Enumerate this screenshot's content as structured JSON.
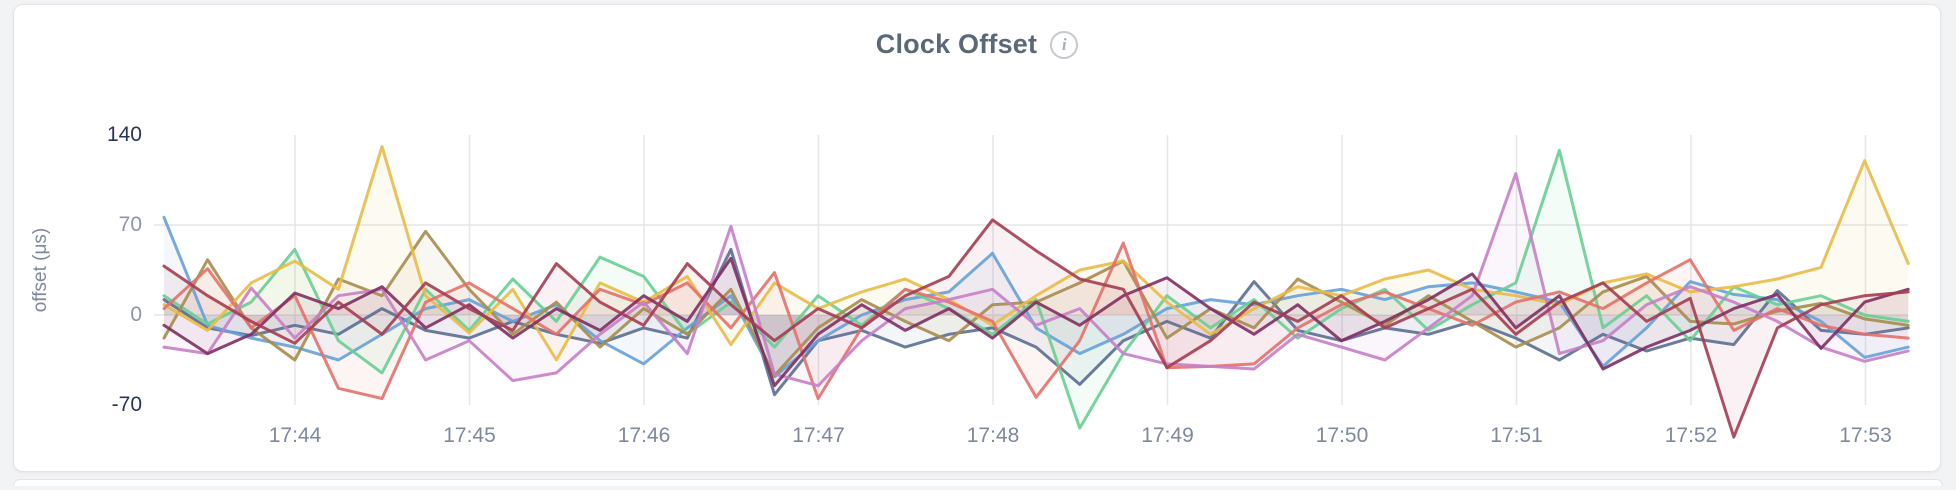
{
  "header": {
    "title": "Clock Offset",
    "info_icon": "i"
  },
  "chart_data": {
    "type": "line",
    "title": "Clock Offset",
    "xlabel": "",
    "ylabel": "offset (μs)",
    "y_ticks": [
      140,
      70,
      0,
      -70
    ],
    "y_ticks_strong": [
      140,
      -70
    ],
    "ylim": [
      -70,
      140
    ],
    "x_tick_labels": [
      "17:44",
      "17:45",
      "17:46",
      "17:47",
      "17:48",
      "17:49",
      "17:50",
      "17:51",
      "17:52",
      "17:53"
    ],
    "x_start_time": "17:43:15",
    "sample_interval_seconds": 15,
    "grid": true,
    "legend": "none",
    "line_width": 3,
    "fill_opacity": 0.07,
    "grid_color": "#e6e6e9",
    "series": [
      {
        "name": "slate",
        "color": "#5b6e91",
        "values": [
          12,
          -10,
          -16,
          -8,
          -15,
          5,
          -12,
          -18,
          -5,
          -15,
          -22,
          -10,
          -18,
          51,
          -62,
          -20,
          -12,
          -25,
          -15,
          -10,
          -25,
          -54,
          -20,
          -5,
          -18,
          26,
          -12,
          -20,
          -10,
          -15,
          -5,
          -18,
          -35,
          -15,
          -28,
          -18,
          -23,
          19,
          -12,
          -15,
          -10
        ]
      },
      {
        "name": "blue",
        "color": "#66a1d8",
        "values": [
          76,
          -8,
          -18,
          -25,
          -35,
          -15,
          5,
          12,
          -5,
          8,
          -20,
          -38,
          -10,
          15,
          -48,
          -20,
          0,
          12,
          18,
          48,
          -10,
          -30,
          -15,
          5,
          12,
          8,
          15,
          20,
          12,
          22,
          25,
          18,
          10,
          -40,
          -10,
          26,
          16,
          12,
          -5,
          -33,
          -25
        ]
      },
      {
        "name": "green",
        "color": "#69ce92",
        "values": [
          15,
          -7,
          10,
          51,
          -20,
          -45,
          20,
          -12,
          28,
          -5,
          45,
          30,
          -15,
          10,
          -25,
          15,
          -8,
          20,
          5,
          -15,
          12,
          -88,
          -30,
          15,
          -10,
          12,
          -18,
          5,
          20,
          -12,
          8,
          25,
          128,
          -10,
          15,
          -20,
          22,
          8,
          15,
          0,
          -5
        ]
      },
      {
        "name": "khaki",
        "color": "#a68c4c",
        "values": [
          -18,
          43,
          -10,
          -35,
          28,
          15,
          65,
          20,
          -15,
          10,
          -25,
          5,
          -15,
          20,
          -47,
          -10,
          12,
          -5,
          -20,
          8,
          10,
          25,
          42,
          -18,
          5,
          -10,
          28,
          10,
          -8,
          15,
          -5,
          -25,
          -10,
          18,
          30,
          -5,
          -7,
          3,
          9,
          -3,
          -8
        ]
      },
      {
        "name": "gold",
        "color": "#e9bb46",
        "values": [
          8,
          -12,
          25,
          42,
          20,
          131,
          15,
          -14,
          20,
          -35,
          25,
          10,
          30,
          -23,
          25,
          5,
          18,
          28,
          12,
          -8,
          15,
          35,
          42,
          10,
          -15,
          5,
          22,
          15,
          28,
          35,
          20,
          15,
          8,
          25,
          32,
          18,
          22,
          28,
          37,
          120,
          40
        ]
      },
      {
        "name": "salmon",
        "color": "#e4706a",
        "values": [
          5,
          36,
          -10,
          15,
          -57,
          -65,
          10,
          25,
          5,
          -15,
          20,
          8,
          25,
          -10,
          33,
          -65,
          -10,
          20,
          10,
          -5,
          -64,
          -20,
          56,
          -41,
          -40,
          -38,
          -10,
          8,
          18,
          5,
          -8,
          10,
          18,
          5,
          25,
          43,
          -12,
          5,
          -8,
          -15,
          -18
        ]
      },
      {
        "name": "orchid",
        "color": "#c77fc7",
        "values": [
          -25,
          -30,
          21,
          -18,
          15,
          20,
          -35,
          -20,
          -51,
          -45,
          -15,
          10,
          -30,
          69,
          -46,
          -55,
          -20,
          5,
          12,
          20,
          -8,
          5,
          -30,
          -38,
          -40,
          -42,
          -15,
          -25,
          -35,
          -10,
          15,
          110,
          -30,
          -20,
          8,
          22,
          10,
          -5,
          -25,
          -36,
          -28
        ]
      },
      {
        "name": "plum",
        "color": "#7e3062",
        "values": [
          -8,
          -30,
          -15,
          17,
          5,
          22,
          -10,
          8,
          -18,
          5,
          -12,
          15,
          -5,
          44,
          -55,
          -15,
          8,
          -12,
          5,
          -18,
          10,
          -8,
          15,
          29,
          5,
          -15,
          8,
          -20,
          -5,
          12,
          32,
          -10,
          15,
          -42,
          -25,
          -12,
          5,
          16,
          -26,
          10,
          20
        ]
      },
      {
        "name": "maroon",
        "color": "#a43d52",
        "values": [
          38,
          15,
          -5,
          -22,
          10,
          -15,
          25,
          5,
          -12,
          40,
          10,
          -8,
          40,
          8,
          -20,
          5,
          -10,
          15,
          30,
          74,
          50,
          28,
          20,
          -41,
          -20,
          10,
          -5,
          15,
          -10,
          5,
          20,
          -15,
          10,
          25,
          -5,
          13,
          -95,
          -10,
          8,
          15,
          18
        ]
      }
    ]
  }
}
